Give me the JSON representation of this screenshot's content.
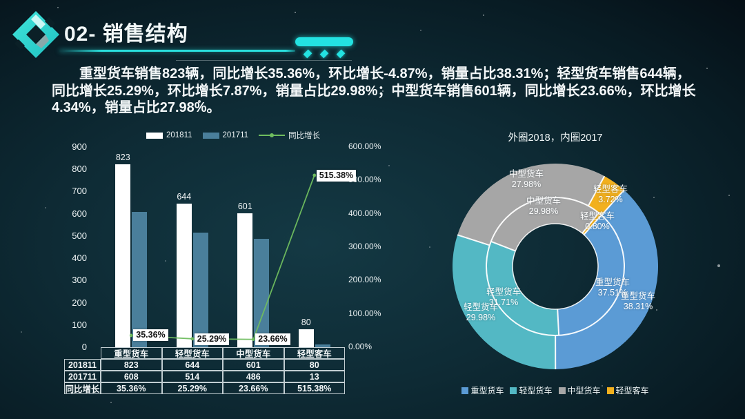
{
  "header": {
    "title": "02- 销售结构"
  },
  "summary": {
    "text": "重型货车销售823辆，同比增长35.36%，环比增长-4.87%，销量占比38.31%；轻型货车销售644辆，同比增长25.29%，环比增长7.87%，销量占比29.98%；中型货车销售601辆，同比增长23.66%，环比增长4.34%，销量占比27.98%。"
  },
  "colors": {
    "accent_cyan": "#23e2e2",
    "bar_2018": "#ffffff",
    "bar_2017": "#4a7f9b",
    "growth_line": "#6fbd5f",
    "heavy_truck": "#5b9bd5",
    "light_truck": "#53b8c4",
    "medium_truck": "#a6a6a6",
    "light_bus": "#f2b01e"
  },
  "chart_data": [
    {
      "type": "bar",
      "categories": [
        "重型货车",
        "轻型货车",
        "中型货车",
        "轻型客车"
      ],
      "series": [
        {
          "name": "201811",
          "kind": "bar",
          "color": "#ffffff",
          "axis": "left",
          "values": [
            823,
            644,
            601,
            80
          ]
        },
        {
          "name": "201711",
          "kind": "bar",
          "color": "#4a7f9b",
          "axis": "left",
          "values": [
            608,
            514,
            486,
            13
          ]
        },
        {
          "name": "同比增长",
          "kind": "line",
          "color": "#6fbd5f",
          "axis": "right",
          "values": [
            35.36,
            25.29,
            23.66,
            515.38
          ],
          "point_labels": [
            "35.36%",
            "25.29%",
            "23.66%",
            "515.38%"
          ]
        }
      ],
      "bar_value_labels": [
        "823",
        "644",
        "601",
        "80"
      ],
      "left_axis": {
        "min": 0,
        "max": 900,
        "step": 100,
        "tick_labels": [
          "900",
          "800",
          "700",
          "600",
          "500",
          "400",
          "300",
          "200",
          "100",
          "0"
        ]
      },
      "right_axis": {
        "min": 0,
        "max": 600,
        "step": 100,
        "tick_labels": [
          "600.00%",
          "500.00%",
          "400.00%",
          "300.00%",
          "200.00%",
          "100.00%",
          "0.00%"
        ]
      },
      "grid": false,
      "legend_position": "top",
      "data_table": {
        "column_headers": [
          "重型货车",
          "轻型货车",
          "中型货车",
          "轻型客车"
        ],
        "rows": [
          {
            "label": "201811",
            "cells": [
              "823",
              "644",
              "601",
              "80"
            ]
          },
          {
            "label": "201711",
            "cells": [
              "608",
              "514",
              "486",
              "13"
            ]
          },
          {
            "label": "同比增长",
            "cells": [
              "35.36%",
              "25.29%",
              "23.66%",
              "515.38%"
            ]
          }
        ]
      }
    },
    {
      "type": "pie",
      "title": "外圈2018，内圈2017",
      "start_angle_cw_from_top": 42,
      "rings": [
        {
          "name": "外圈 2018",
          "segments": [
            {
              "label": "重型货车",
              "value_pct": 38.31,
              "pct_label": "38.31%",
              "color": "#5b9bd5"
            },
            {
              "label": "轻型货车",
              "value_pct": 29.98,
              "pct_label": "29.98%",
              "color": "#53b8c4"
            },
            {
              "label": "中型货车",
              "value_pct": 27.98,
              "pct_label": "27.98%",
              "color": "#a6a6a6"
            },
            {
              "label": "轻型客车",
              "value_pct": 3.72,
              "pct_label": "3.72%",
              "color": "#f2b01e"
            }
          ]
        },
        {
          "name": "内圈 2017",
          "segments": [
            {
              "label": "重型货车",
              "value_pct": 37.51,
              "pct_label": "37.51%",
              "color": "#5b9bd5"
            },
            {
              "label": "轻型货车",
              "value_pct": 31.71,
              "pct_label": "31.71%",
              "color": "#53b8c4"
            },
            {
              "label": "中型货车",
              "value_pct": 29.98,
              "pct_label": "29.98%",
              "color": "#a6a6a6"
            },
            {
              "label": "轻型客车",
              "value_pct": 0.8,
              "pct_label": "0.80%",
              "color": "#f2b01e"
            }
          ]
        }
      ],
      "legend": [
        {
          "label": "重型货车",
          "color": "#5b9bd5"
        },
        {
          "label": "轻型货车",
          "color": "#53b8c4"
        },
        {
          "label": "中型货车",
          "color": "#a6a6a6"
        },
        {
          "label": "轻型客车",
          "color": "#f2b01e"
        }
      ]
    }
  ]
}
